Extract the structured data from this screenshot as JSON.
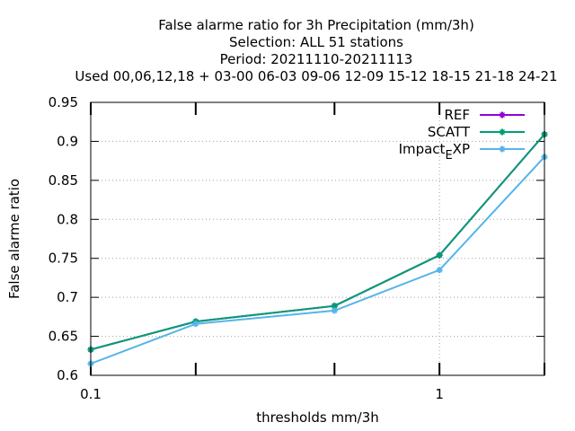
{
  "chart_data": {
    "type": "line",
    "title_lines": [
      "False alarme ratio  for 3h Precipitation (mm/3h)",
      "Selection: ALL     51 stations",
      "Period: 20211110-20211113",
      "Used  00,06,12,18  + 03-00 06-03 09-06 12-09 15-12 18-15 21-18 24-21"
    ],
    "xlabel": "thresholds mm/3h",
    "ylabel": "False alarme ratio",
    "x_scale": "log",
    "xlim": [
      0.1,
      2
    ],
    "ylim": [
      0.6,
      0.95
    ],
    "x_ticks": [
      {
        "value": 0.1,
        "label": "0.1"
      },
      {
        "value": 0.2,
        "label": ""
      },
      {
        "value": 0.5,
        "label": ""
      },
      {
        "value": 1,
        "label": "1"
      },
      {
        "value": 2,
        "label": ""
      }
    ],
    "y_ticks": [
      {
        "value": 0.6,
        "label": "0.6"
      },
      {
        "value": 0.65,
        "label": "0.65"
      },
      {
        "value": 0.7,
        "label": "0.7"
      },
      {
        "value": 0.75,
        "label": "0.75"
      },
      {
        "value": 0.8,
        "label": "0.8"
      },
      {
        "value": 0.85,
        "label": "0.85"
      },
      {
        "value": 0.9,
        "label": "0.9"
      },
      {
        "value": 0.95,
        "label": "0.95"
      }
    ],
    "grid": true,
    "legend_position": "top-right",
    "x": [
      0.1,
      0.2,
      0.5,
      1,
      2
    ],
    "series": [
      {
        "name": "REF",
        "name_main": "REF",
        "name_sub": "",
        "name_tail": "",
        "color": "#9400d3",
        "values": [
          0.633,
          0.669,
          0.689,
          0.754,
          0.909
        ]
      },
      {
        "name": "SCATT",
        "name_main": "SCATT",
        "name_sub": "",
        "name_tail": "",
        "color": "#009e73",
        "values": [
          0.633,
          0.669,
          0.689,
          0.754,
          0.909
        ]
      },
      {
        "name": "Impact_EXP",
        "name_main": "Impact",
        "name_sub": "E",
        "name_tail": "XP",
        "color": "#56b4e9",
        "values": [
          0.615,
          0.666,
          0.683,
          0.735,
          0.88
        ]
      }
    ]
  }
}
